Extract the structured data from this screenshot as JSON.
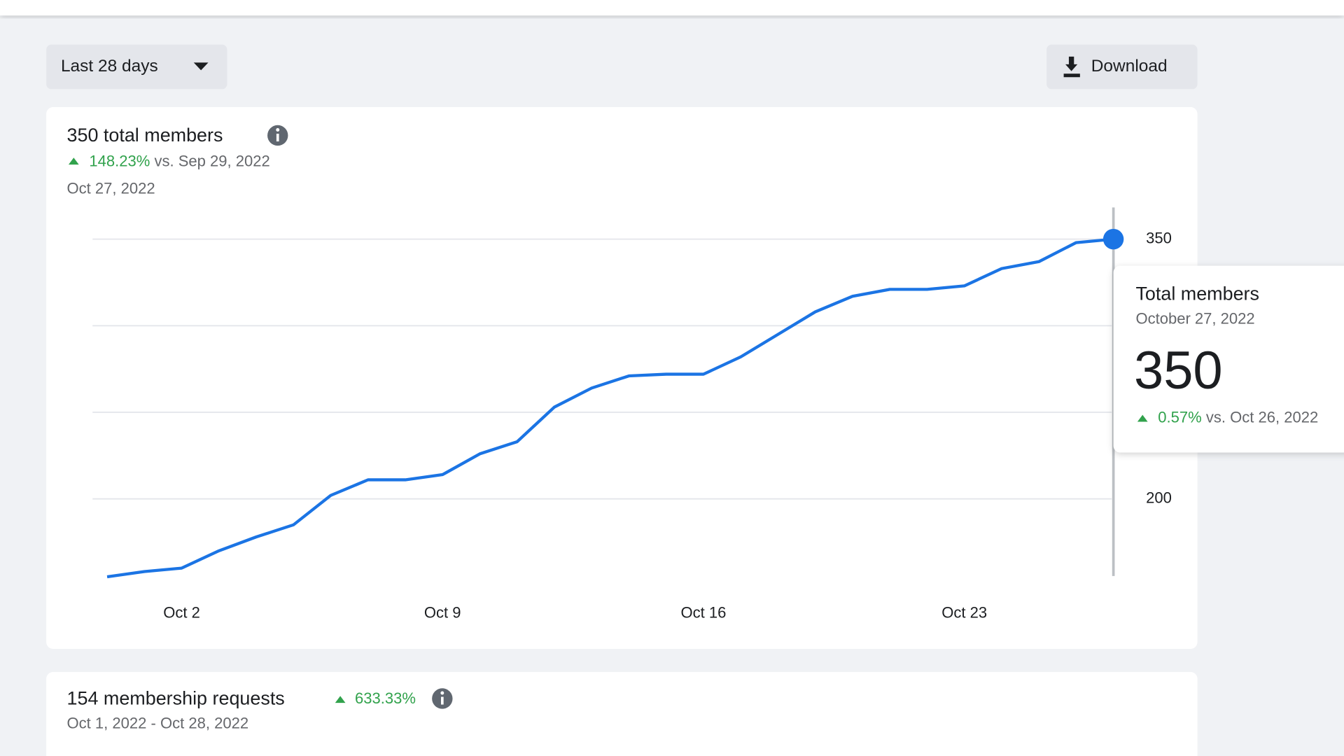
{
  "toolbar": {
    "range": "Last 28 days",
    "download": "Download"
  },
  "members_card": {
    "title": "350 total members",
    "change": "148.23%",
    "comparison": "vs. Sep 29, 2022",
    "date": "Oct 27, 2022"
  },
  "chart_data": {
    "type": "line",
    "categories": [
      null,
      null,
      "Oct 2",
      null,
      null,
      null,
      null,
      null,
      null,
      "Oct 9",
      null,
      null,
      null,
      null,
      null,
      null,
      "Oct 16",
      null,
      null,
      null,
      null,
      null,
      null,
      "Oct 23",
      null,
      null,
      null,
      null
    ],
    "values": [
      155,
      158,
      160,
      170,
      178,
      185,
      202,
      211,
      211,
      214,
      226,
      233,
      253,
      264,
      271,
      272,
      272,
      282,
      295,
      308,
      317,
      321,
      321,
      323,
      333,
      337,
      348,
      350
    ],
    "color": "#1b74e4",
    "ylim": [
      150,
      365
    ],
    "yticks": [
      200,
      350
    ],
    "gridlines": [
      200,
      250,
      300,
      350
    ],
    "tooltip": {
      "title": "Total members",
      "date": "October 27, 2022",
      "value": 350,
      "change": "0.57%",
      "comparison": "vs. Oct 26, 2022"
    }
  },
  "requests_card": {
    "title": "154 membership requests",
    "change": "633.33%",
    "date_range": "Oct 1, 2022 - Oct 28, 2022"
  }
}
